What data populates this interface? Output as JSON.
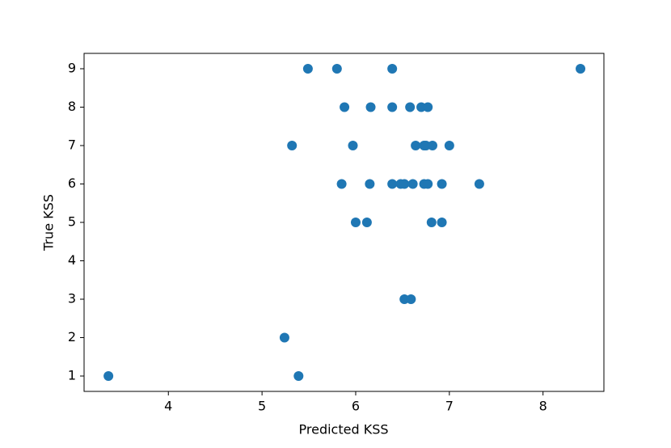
{
  "chart_data": {
    "type": "scatter",
    "x_label": "Predicted KSS",
    "y_label": "True KSS",
    "color": "#1f77b4",
    "x": [
      5.49,
      5.8,
      6.39,
      8.4,
      5.88,
      6.16,
      6.39,
      6.58,
      6.7,
      6.77,
      5.32,
      5.97,
      6.64,
      6.73,
      6.75,
      6.82,
      7.0,
      5.85,
      6.15,
      6.39,
      6.48,
      6.52,
      6.61,
      6.73,
      6.77,
      6.92,
      7.32,
      6.0,
      6.12,
      6.81,
      6.92,
      6.52,
      6.59,
      5.24,
      3.36,
      5.39
    ],
    "values": [
      9,
      9,
      9,
      9,
      8,
      8,
      8,
      8,
      8,
      8,
      7,
      7,
      7,
      7,
      7,
      7,
      7,
      6,
      6,
      6,
      6,
      6,
      6,
      6,
      6,
      6,
      6,
      5,
      5,
      5,
      5,
      3,
      3,
      2,
      1,
      1
    ],
    "xlim": [
      3.1,
      8.65
    ],
    "xticks": [
      4,
      5,
      6,
      7,
      8
    ],
    "ylim": [
      0.6,
      9.4
    ],
    "yticks": [
      1,
      2,
      3,
      4,
      5,
      6,
      7,
      8,
      9
    ]
  }
}
